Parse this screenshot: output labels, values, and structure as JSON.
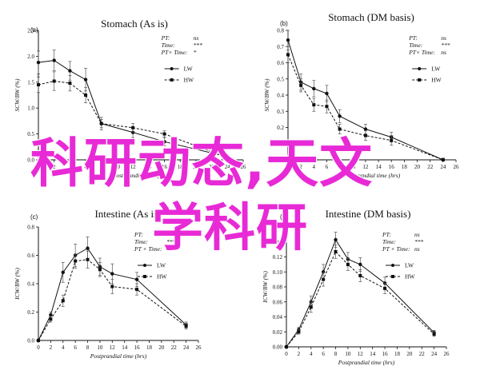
{
  "overlay": {
    "line1": "科研动态,天文",
    "line2": "学科研"
  },
  "chart_data": [
    {
      "type": "line",
      "panel": "a",
      "title": "Stomach (As is)",
      "xlabel": "Postprandial time (hrs)",
      "ylabel": "SCW/BW (%)",
      "xlim": [
        0,
        26
      ],
      "ylim": [
        0,
        2.5
      ],
      "xticks": [
        0,
        2,
        4,
        6,
        8,
        10,
        12,
        14,
        16,
        18,
        20,
        22,
        24,
        26
      ],
      "yticks": [
        0,
        0.5,
        1.0,
        1.5,
        2.0,
        2.5
      ],
      "stats": [
        [
          "PT:",
          "ns"
        ],
        [
          "Time:",
          "***"
        ],
        [
          "PT× Time:",
          "*"
        ]
      ],
      "series": [
        {
          "name": "LW",
          "style": "solid",
          "marker": "circle",
          "x": [
            0,
            2,
            4,
            6,
            8,
            12,
            16,
            24
          ],
          "y": [
            1.88,
            1.92,
            1.72,
            1.55,
            0.7,
            0.53,
            0.35,
            0.06
          ],
          "err": [
            0.22,
            0.2,
            0.18,
            0.22,
            0.12,
            0.1,
            0.08,
            0.02
          ]
        },
        {
          "name": "HW",
          "style": "dashed",
          "marker": "square",
          "x": [
            0,
            2,
            4,
            6,
            8,
            12,
            16,
            24
          ],
          "y": [
            1.45,
            1.52,
            1.48,
            1.25,
            0.7,
            0.62,
            0.5,
            0.04
          ],
          "err": [
            0.15,
            0.18,
            0.15,
            0.15,
            0.08,
            0.08,
            0.06,
            0.02
          ]
        }
      ]
    },
    {
      "type": "line",
      "panel": "b",
      "title": "Stomach (DM basis)",
      "xlabel": "Postprandial time (hrs)",
      "ylabel": "SCW/BW (%)",
      "xlim": [
        0,
        26
      ],
      "ylim": [
        0,
        0.8
      ],
      "xticks": [
        0,
        2,
        4,
        6,
        8,
        10,
        12,
        14,
        16,
        18,
        20,
        22,
        24,
        26
      ],
      "yticks": [
        0,
        0.1,
        0.2,
        0.3,
        0.4,
        0.5,
        0.6,
        0.7,
        0.8
      ],
      "stats": [
        [
          "PT:",
          "ns"
        ],
        [
          "Time:",
          "***"
        ],
        [
          "PT× Time:",
          "ns"
        ]
      ],
      "series": [
        {
          "name": "LW",
          "style": "solid",
          "marker": "circle",
          "x": [
            0,
            2,
            4,
            6,
            8,
            12,
            16,
            24
          ],
          "y": [
            0.74,
            0.48,
            0.44,
            0.41,
            0.27,
            0.19,
            0.14,
            0.0
          ],
          "err": [
            0.06,
            0.05,
            0.05,
            0.05,
            0.04,
            0.03,
            0.03,
            0.01
          ]
        },
        {
          "name": "HW",
          "style": "dashed",
          "marker": "square",
          "x": [
            0,
            2,
            4,
            6,
            8,
            12,
            16,
            24
          ],
          "y": [
            0.65,
            0.46,
            0.34,
            0.33,
            0.19,
            0.15,
            0.12,
            0.0
          ],
          "err": [
            0.05,
            0.04,
            0.04,
            0.04,
            0.03,
            0.03,
            0.03,
            0.01
          ]
        }
      ]
    },
    {
      "type": "line",
      "panel": "c",
      "title": "Intestine (As is)",
      "xlabel": "Postprandial time (hrs)",
      "ylabel": "ICW/BW (%)",
      "xlim": [
        0,
        26
      ],
      "ylim": [
        0,
        0.8
      ],
      "xticks": [
        0,
        2,
        4,
        6,
        8,
        10,
        12,
        14,
        16,
        18,
        20,
        22,
        24,
        26
      ],
      "yticks": [
        0,
        0.2,
        0.4,
        0.6,
        0.8
      ],
      "stats": [
        [
          "PT:",
          "ns"
        ],
        [
          "Time:",
          "***"
        ],
        [
          "PT × Time:",
          "ns"
        ]
      ],
      "series": [
        {
          "name": "LW",
          "style": "solid",
          "marker": "circle",
          "x": [
            0,
            2,
            4,
            6,
            8,
            10,
            12,
            16,
            24
          ],
          "y": [
            0.0,
            0.18,
            0.48,
            0.6,
            0.65,
            0.52,
            0.47,
            0.43,
            0.11
          ],
          "err": [
            0.01,
            0.02,
            0.07,
            0.08,
            0.08,
            0.06,
            0.07,
            0.05,
            0.02
          ]
        },
        {
          "name": "HW",
          "style": "dashed",
          "marker": "square",
          "x": [
            0,
            2,
            4,
            6,
            8,
            10,
            12,
            16,
            24
          ],
          "y": [
            0.0,
            0.15,
            0.28,
            0.56,
            0.57,
            0.5,
            0.38,
            0.36,
            0.1
          ],
          "err": [
            0.01,
            0.02,
            0.04,
            0.05,
            0.06,
            0.05,
            0.05,
            0.04,
            0.02
          ]
        }
      ]
    },
    {
      "type": "line",
      "panel": "d",
      "title": "Intestine (DM basis)",
      "xlabel": "Postprandial time (hrs)",
      "ylabel": "ICW/BW (%)",
      "xlim": [
        0,
        26
      ],
      "ylim": [
        0,
        0.16
      ],
      "xticks": [
        0,
        2,
        4,
        6,
        8,
        10,
        12,
        14,
        16,
        18,
        20,
        22,
        24,
        26
      ],
      "yticks": [
        0,
        0.02,
        0.04,
        0.06,
        0.08,
        0.1,
        0.12,
        0.14,
        0.16
      ],
      "stats": [
        [
          "PT:",
          "ns"
        ],
        [
          "Time:",
          "***"
        ],
        [
          "PT × Time:",
          "ns"
        ]
      ],
      "series": [
        {
          "name": "LW",
          "style": "solid",
          "marker": "circle",
          "x": [
            0,
            2,
            4,
            6,
            8,
            10,
            12,
            16,
            24
          ],
          "y": [
            0.0,
            0.023,
            0.06,
            0.1,
            0.143,
            0.117,
            0.11,
            0.085,
            0.019
          ],
          "err": [
            0.001,
            0.003,
            0.008,
            0.01,
            0.01,
            0.009,
            0.009,
            0.008,
            0.003
          ]
        },
        {
          "name": "HW",
          "style": "dashed",
          "marker": "square",
          "x": [
            0,
            2,
            4,
            6,
            8,
            10,
            12,
            16,
            24
          ],
          "y": [
            0.0,
            0.02,
            0.053,
            0.09,
            0.127,
            0.11,
            0.095,
            0.078,
            0.017
          ],
          "err": [
            0.001,
            0.003,
            0.007,
            0.009,
            0.009,
            0.008,
            0.008,
            0.007,
            0.003
          ]
        }
      ]
    }
  ]
}
